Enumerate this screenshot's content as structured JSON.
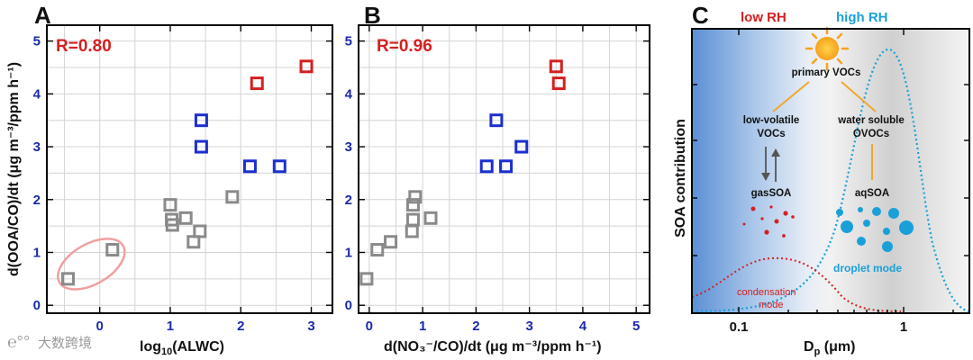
{
  "watermark": "大数跨境",
  "chart_data": [
    {
      "panel": "A",
      "type": "scatter",
      "ylabel": "d(OOA/CO)/dt (μg m⁻³/ppm h⁻¹)",
      "xlabel_main": "log",
      "xlabel_sub": "10",
      "xlabel_rest": "(ALWC)",
      "annotation": "R=0.80",
      "xlim": [
        -0.75,
        3.3
      ],
      "ylim": [
        -0.15,
        5.3
      ],
      "xticks": [
        0,
        1,
        2,
        3
      ],
      "yticks": [
        0,
        1,
        2,
        3,
        4,
        5
      ],
      "series": [
        {
          "color": "#8a8a8a",
          "points": [
            [
              -0.45,
              0.5
            ],
            [
              0.18,
              1.05
            ],
            [
              1.0,
              1.9
            ],
            [
              1.02,
              1.62
            ],
            [
              1.03,
              1.52
            ],
            [
              1.22,
              1.65
            ],
            [
              1.33,
              1.2
            ],
            [
              1.42,
              1.4
            ],
            [
              1.88,
              2.05
            ]
          ]
        },
        {
          "color": "#1b2fd0",
          "points": [
            [
              1.44,
              3.5
            ],
            [
              1.44,
              3.0
            ],
            [
              2.13,
              2.63
            ],
            [
              2.55,
              2.63
            ]
          ]
        },
        {
          "color": "#d42020",
          "points": [
            [
              2.23,
              4.2
            ],
            [
              2.93,
              4.52
            ]
          ]
        }
      ],
      "ellipse": {
        "color": "#f0a0a0",
        "cx": -0.12,
        "cy": 0.78,
        "rx": 0.52,
        "ry": 0.38,
        "angle": -30
      }
    },
    {
      "panel": "B",
      "type": "scatter",
      "xlabel": "d(NO₃⁻/CO)/dt (μg m⁻³/ppm h⁻¹)",
      "annotation": "R=0.96",
      "xlim": [
        -0.2,
        5.25
      ],
      "ylim": [
        -0.15,
        5.3
      ],
      "xticks": [
        0,
        1,
        2,
        3,
        4,
        5
      ],
      "yticks": [
        0,
        1,
        2,
        3,
        4,
        5
      ],
      "series": [
        {
          "color": "#8a8a8a",
          "points": [
            [
              -0.05,
              0.5
            ],
            [
              0.15,
              1.05
            ],
            [
              0.4,
              1.2
            ],
            [
              0.8,
              1.4
            ],
            [
              0.82,
              1.62
            ],
            [
              0.82,
              1.9
            ],
            [
              0.86,
              2.05
            ],
            [
              1.15,
              1.65
            ]
          ]
        },
        {
          "color": "#1b2fd0",
          "points": [
            [
              2.2,
              2.63
            ],
            [
              2.38,
              3.5
            ],
            [
              2.56,
              2.63
            ],
            [
              2.85,
              3.0
            ]
          ]
        },
        {
          "color": "#d42020",
          "points": [
            [
              3.5,
              4.52
            ],
            [
              3.55,
              4.2
            ]
          ]
        }
      ]
    },
    {
      "panel": "C",
      "type": "diagram",
      "ylabel": "SOA contribution",
      "xlabel_main": "D",
      "xlabel_sub": "p",
      "xlabel_rest": " (μm)",
      "xticks": [
        "0.1",
        "1"
      ],
      "low_rh": "low RH",
      "high_rh": "high RH",
      "primary": "primary VOCs",
      "lowvol_1": "low-volatile",
      "lowvol_2": "VOCs",
      "water_1": "water soluble",
      "water_2": "OVOCs",
      "gas_soa": "gasSOA",
      "aq_soa": "aqSOA",
      "cond_1": "condensation",
      "cond_2": "mode",
      "droplet": "droplet mode",
      "colors": {
        "low": "#d42020",
        "high": "#1aa0d8",
        "arrow": "#f0a830"
      }
    }
  ]
}
